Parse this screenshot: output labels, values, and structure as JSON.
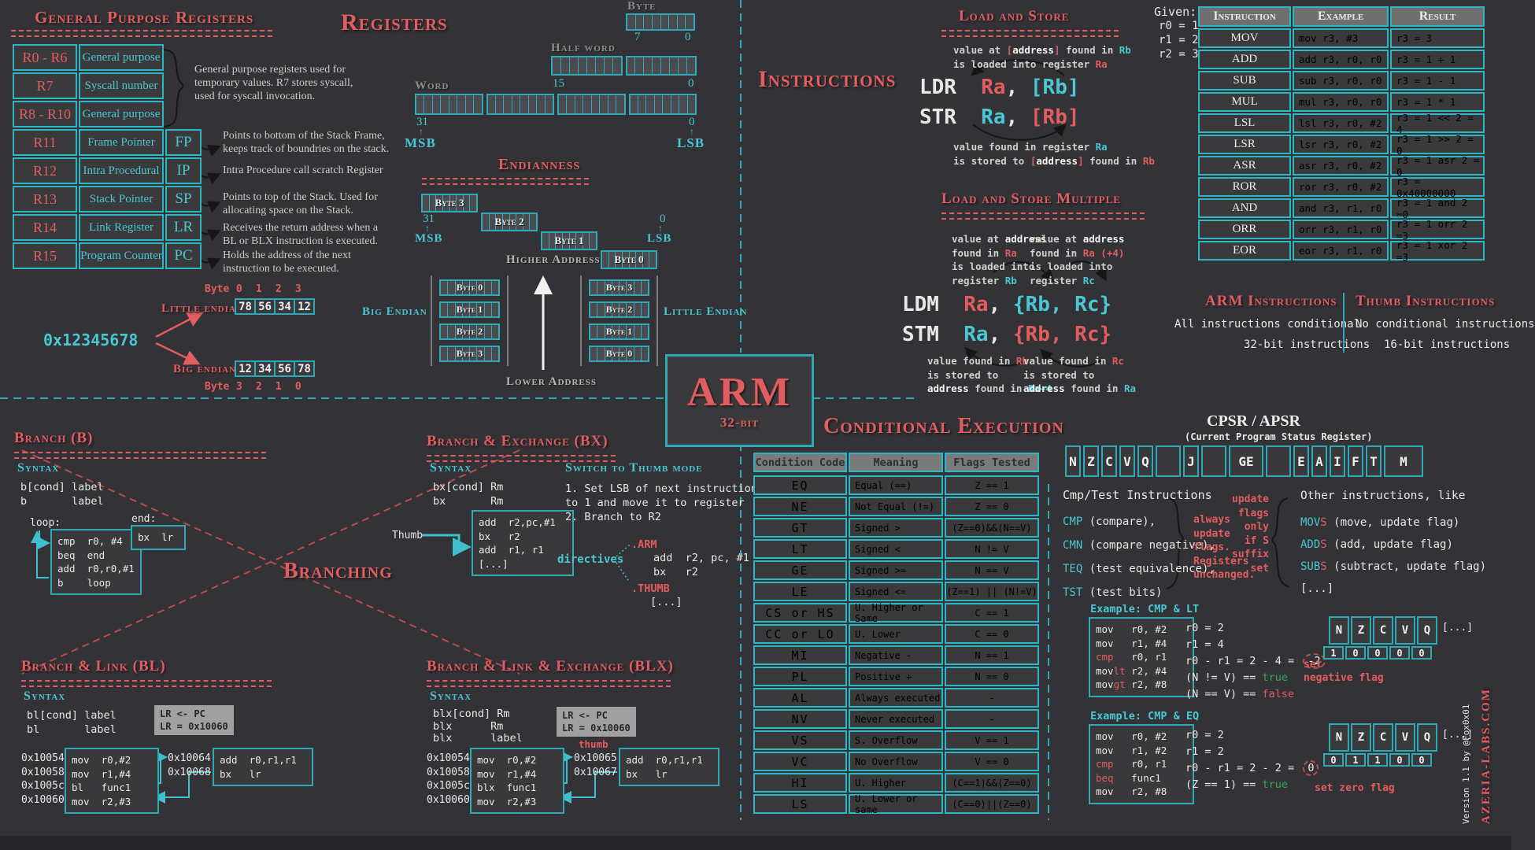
{
  "colors": {
    "bg": "#333236",
    "red": "#e25d5f",
    "cyan": "#49c7d2",
    "teal_border": "#2fa9b6",
    "bright_border": "#2db6c3",
    "white": "#e9e8e6",
    "grey_note": "#cfccc8",
    "green": "#33a852",
    "header_bg": "#6f6f6f",
    "cell_bg": "#3a393c",
    "grey_box": "#a0a0a0"
  },
  "gpr": {
    "title": "General Purpose Registers",
    "rows": [
      [
        "R0 - R6",
        "General purpose",
        ""
      ],
      [
        "R7",
        "Syscall number",
        ""
      ],
      [
        "R8 - R10",
        "General purpose",
        ""
      ],
      [
        "R11",
        "Frame Pointer",
        "FP"
      ],
      [
        "R12",
        "Intra Procedural",
        "IP"
      ],
      [
        "R13",
        "Stack Pointer",
        "SP"
      ],
      [
        "R14",
        "Link Register",
        "LR"
      ],
      [
        "R15",
        "Program Counter",
        "PC"
      ]
    ],
    "note_top": [
      [
        "General purpose registers used for"
      ],
      [
        "temporary values. R7 stores syscall,"
      ],
      [
        "used for syscall invocation."
      ]
    ],
    "note_fp": [
      [
        [
          "Points to bottom of the Stack ",
          "w"
        ],
        [
          "Frame",
          "b"
        ],
        [
          ",",
          "w"
        ]
      ],
      [
        "keeps track of boundries on the stack."
      ]
    ],
    "note_ip": [
      [
        "Intra Procedure call scratch Register"
      ]
    ],
    "note_sp": [
      [
        "Points to top of the Stack. Used for"
      ],
      [
        "allocating space on the Stack."
      ]
    ],
    "note_lr": [
      [
        "Receives the return address when a"
      ],
      [
        "BL or BLX instruction is executed."
      ]
    ],
    "note_pc": [
      [
        "Holds the address of the next"
      ],
      [
        "instruction to be executed."
      ]
    ]
  },
  "registers": {
    "title": "Registers",
    "byte_label": "Byte",
    "byte_hi": "7",
    "byte_lo": "0",
    "half_label": "Half word",
    "half_hi": "15",
    "half_lo": "0",
    "word_label": "Word",
    "word_hi": "31",
    "word_lo": "0",
    "msb": "MSB",
    "lsb": "LSB",
    "up": "↑"
  },
  "endianness": {
    "title": "Endianness",
    "strip": [
      "Byte 3",
      "Byte 2",
      "Byte 1",
      "Byte 0"
    ],
    "hi": "31",
    "lo": "0",
    "msb": "MSB",
    "lsb": "LSB",
    "up": "↑",
    "higher": "Higher Address",
    "lower": "Lower Address",
    "big_label": "Big Endian",
    "little_label": "Little Endian",
    "big_stack": [
      "Byte 0",
      "Byte 1",
      "Byte 2",
      "Byte 3"
    ],
    "little_stack": [
      "Byte 3",
      "Byte 2",
      "Byte 1",
      "Byte 0"
    ]
  },
  "hexex": {
    "hex": "0x12345678",
    "byte_word": "Byte",
    "le_label": "Little endian",
    "be_label": "Big endian",
    "le_idx": [
      "0",
      "1",
      "2",
      "3"
    ],
    "be_idx": [
      "3",
      "2",
      "1",
      "0"
    ],
    "le_vals": [
      "78",
      "56",
      "34",
      "12"
    ],
    "be_vals": [
      "12",
      "34",
      "56",
      "78"
    ]
  },
  "arm_badge": {
    "title": "ARM",
    "subtitle": "32-bit"
  },
  "instructions_heading": "Instructions",
  "ls": {
    "title": "Load and Store",
    "note_top": [
      [
        [
          "value at ",
          "k"
        ],
        [
          "[",
          "r"
        ],
        [
          "address",
          "b"
        ],
        [
          "]",
          "r"
        ],
        [
          " found in ",
          "k"
        ],
        [
          "Rb",
          "c"
        ]
      ],
      [
        [
          "is loaded into register ",
          "k"
        ],
        [
          "Ra",
          "r"
        ]
      ]
    ],
    "code": [
      [
        [
          "LDR",
          "w"
        ],
        [
          "  ",
          "w"
        ],
        [
          "Ra",
          "r"
        ],
        [
          ", ",
          "w"
        ],
        [
          "[Rb]",
          "c"
        ]
      ],
      [
        [
          "STR",
          "w"
        ],
        [
          "  ",
          "w"
        ],
        [
          "Ra",
          "c"
        ],
        [
          ", ",
          "w"
        ],
        [
          "[Rb]",
          "r"
        ]
      ]
    ],
    "note_bottom": [
      [
        [
          "value found in register ",
          "k"
        ],
        [
          "Ra",
          "c"
        ]
      ],
      [
        [
          "is stored to ",
          "k"
        ],
        [
          "[",
          "r"
        ],
        [
          "address",
          "b"
        ],
        [
          "]",
          "r"
        ],
        [
          " found in ",
          "k"
        ],
        [
          "Rb",
          "r"
        ]
      ]
    ]
  },
  "lsm": {
    "title": "Load and Store Multiple",
    "ann_tl": [
      [
        [
          "value at ",
          "k"
        ],
        [
          "address",
          "b"
        ]
      ],
      [
        [
          "found in ",
          "k"
        ],
        [
          "Ra",
          "r"
        ]
      ],
      [
        [
          "is loaded into",
          "k"
        ]
      ],
      [
        [
          "register ",
          "k"
        ],
        [
          "Rb",
          "c"
        ]
      ]
    ],
    "ann_tr": [
      [
        [
          "value at ",
          "k"
        ],
        [
          "address",
          "b"
        ]
      ],
      [
        [
          "found in ",
          "k"
        ],
        [
          "Ra (+4)",
          "r"
        ]
      ],
      [
        [
          "is loaded into",
          "k"
        ]
      ],
      [
        [
          "register ",
          "k"
        ],
        [
          "Rc",
          "c"
        ]
      ]
    ],
    "code": [
      [
        [
          "LDM",
          "w"
        ],
        [
          "  ",
          "w"
        ],
        [
          "Ra",
          "r"
        ],
        [
          ", ",
          "w"
        ],
        [
          "{Rb, Rc}",
          "c"
        ]
      ],
      [
        [
          "STM",
          "w"
        ],
        [
          "  ",
          "w"
        ],
        [
          "Ra",
          "c"
        ],
        [
          ", ",
          "w"
        ],
        [
          "{Rb, Rc}",
          "r"
        ]
      ]
    ],
    "ann_bl": [
      [
        [
          "value found in ",
          "k"
        ],
        [
          "Rb",
          "r"
        ]
      ],
      [
        [
          "is stored to",
          "k"
        ]
      ],
      [
        [
          "address",
          "b"
        ],
        [
          " found in ",
          "k"
        ],
        [
          "Ra+4",
          "c"
        ]
      ]
    ],
    "ann_br": [
      [
        [
          "value found in ",
          "k"
        ],
        [
          "Rc",
          "r"
        ]
      ],
      [
        [
          "is stored to",
          "k"
        ]
      ],
      [
        [
          "address",
          "b"
        ],
        [
          " found in ",
          "k"
        ],
        [
          "Ra",
          "c"
        ]
      ]
    ]
  },
  "given": {
    "label": "Given:",
    "lines": [
      "r0 = 1",
      "r1 = 2",
      "r2 = 3"
    ]
  },
  "itable": {
    "headers": [
      "Instruction",
      "Example",
      "Result"
    ],
    "rows": [
      [
        "MOV",
        "mov r3, #3",
        "r3 = 3"
      ],
      [
        "ADD",
        "add r3, r0, r0",
        "r3 = 1 + 1"
      ],
      [
        "SUB",
        "sub r3, r0, r0",
        "r3 = 1 - 1"
      ],
      [
        "MUL",
        "mul r3, r0, r0",
        "r3 = 1 * 1"
      ],
      [
        "LSL",
        "lsl r3, r0, #2",
        "r3 = 1 << 2 = 4"
      ],
      [
        "LSR",
        "lsr r3, r0, #2",
        "r3 = 1 >> 2 = 0"
      ],
      [
        "ASR",
        "asr r3, r0, #2",
        "r3 = 1 asr 2 = 0"
      ],
      [
        "ROR",
        "ror r3, r0, #2",
        "r3 = 0x40000000"
      ],
      [
        "AND",
        "and r3, r1, r0",
        "r3 = 1 and 2 =0"
      ],
      [
        "ORR",
        "orr r3, r1, r0",
        "r3 = 1 orr 2 =3"
      ],
      [
        "EOR",
        "eor r3, r1, r0",
        "r3 = 1 xor 2 =3"
      ]
    ]
  },
  "arm_thumb": {
    "arm_title": "ARM Instructions",
    "arm_lines": [
      "All instructions conditional",
      "32-bit instructions"
    ],
    "thumb_title": "Thumb Instructions",
    "thumb_lines": [
      "No conditional instructions",
      "16-bit instructions"
    ]
  },
  "branching_heading": "Branching",
  "b": {
    "title": "Branch (B)",
    "syntax_label": "Syntax",
    "syntax": [
      "b[cond] label",
      "b       label"
    ],
    "loop_label": "loop:",
    "loop": [
      "cmp  r0, #4",
      "beq  end",
      "add  r0,r0,#1",
      "b    loop"
    ],
    "end_label": "end:",
    "end": [
      "bx  lr"
    ]
  },
  "bx": {
    "title": "Branch & Exchange (BX)",
    "syntax_label": "Syntax",
    "syntax": [
      "bx[cond] Rm",
      "bx       Rm"
    ],
    "box": [
      "add  r2,pc,#1",
      "bx   r2",
      "add  r1, r1",
      "[...]"
    ],
    "thumb_label": "Thumb",
    "switch_title": "Switch to Thumb mode",
    "steps": [
      "1. Set LSB of next instruction",
      "to 1 and move it to register",
      "2. Branch to R2"
    ],
    "directives_label": "directives",
    "arm_directive": ".ARM",
    "arm_block": [
      "add  r2, pc, #1",
      "bx   r2"
    ],
    "thumb_directive": ".THUMB",
    "thumb_block": [
      "[...]"
    ]
  },
  "bl": {
    "title": "Branch & Link  (BL)",
    "syntax_label": "Syntax",
    "syntax": [
      "bl[cond] label",
      "bl       label"
    ],
    "addresses": [
      "0x10054",
      "0x10058",
      "0x1005c",
      "0x10060"
    ],
    "box": [
      "mov  r0,#2",
      "mov  r1,#4",
      "bl   func1",
      "mov  r2,#3"
    ],
    "lr_note": [
      "LR <- PC",
      "LR = 0x10060"
    ],
    "target_addresses": [
      "0x10064",
      "0x10068"
    ],
    "target_box": [
      "add  r0,r1,r1",
      "bx   lr"
    ]
  },
  "blx": {
    "title": "Branch & Link & Exchange (BLX)",
    "syntax_label": "Syntax",
    "syntax": [
      "blx[cond] Rm",
      "blx      Rm",
      "blx      label"
    ],
    "addresses": [
      "0x10054",
      "0x10058",
      "0x1005c",
      "0x10060"
    ],
    "box": [
      "mov  r0,#2",
      "mov  r1,#4",
      "blx  func1",
      "mov  r2,#3"
    ],
    "lr_note": [
      "LR <- PC",
      "LR = 0x10060"
    ],
    "thumb_label": "thumb",
    "target_addresses": [
      "0x10065",
      "0x10067"
    ],
    "target_box": [
      "add  r0,r1,r1",
      "bx   lr"
    ]
  },
  "cond": {
    "title": "Conditional Execution",
    "headers": [
      "Condition Code",
      "Meaning",
      "Flags Tested"
    ],
    "rows": [
      [
        "EQ",
        "Equal (==)",
        "Z == 1"
      ],
      [
        "NE",
        "Not Equal (!=)",
        "Z == 0"
      ],
      [
        "GT",
        "Signed >",
        "(Z==0)&&(N==V)"
      ],
      [
        "LT",
        "Signed <",
        "N != V"
      ],
      [
        "GE",
        "Signed >=",
        "N == V"
      ],
      [
        "LE",
        "Signed <=",
        "(Z==1) || (N!=V)"
      ],
      [
        "CS or HS",
        "U. Higher or Same",
        "C == 1"
      ],
      [
        "CC or LO",
        "U. Lower",
        "C == 0"
      ],
      [
        "MI",
        "Negative -",
        "N == 1"
      ],
      [
        "PL",
        "Positive +",
        "N == 0"
      ],
      [
        "AL",
        "Always executed",
        "-"
      ],
      [
        "NV",
        "Never executed",
        "-"
      ],
      [
        "VS",
        "S. Overflow",
        "V == 1"
      ],
      [
        "VC",
        "No Overflow",
        "V == 0"
      ],
      [
        "HI",
        "U. Higher",
        "(C==1)&&(Z==0)"
      ],
      [
        "LS",
        "U. Lower or same",
        "(C==0)||(Z==0)"
      ]
    ]
  },
  "cpsr": {
    "title": "CPSR / APSR",
    "subtitle": "(Current Program Status Register)",
    "flags": [
      "N",
      "Z",
      "C",
      "V",
      "Q",
      "",
      "J",
      "",
      "GE",
      "",
      "E",
      "A",
      "I",
      "F",
      "T",
      "M"
    ],
    "cmp_title": "Cmp/Test Instructions",
    "cmp_items": [
      [
        [
          "CMP",
          "c"
        ],
        [
          " (compare),",
          "w"
        ]
      ],
      [
        [
          "CMN",
          "c"
        ],
        [
          " (compare negative),",
          "w"
        ]
      ],
      [
        [
          "TEQ",
          "c"
        ],
        [
          " (test equivalence),",
          "w"
        ]
      ],
      [
        [
          "TST",
          "c"
        ],
        [
          " (test bits)",
          "w"
        ]
      ]
    ],
    "always_note": [
      "always",
      "update",
      "flags.",
      "Registers",
      "unchanged."
    ],
    "s_note": [
      "update",
      "flags",
      "only",
      "if S",
      "suffix",
      "set"
    ],
    "other_title": "Other instructions, like",
    "other_items": [
      [
        [
          "MOV",
          "c"
        ],
        [
          "S",
          "r"
        ],
        [
          " (move, update flag)",
          "w"
        ]
      ],
      [
        [
          "ADD",
          "c"
        ],
        [
          "S",
          "r"
        ],
        [
          " (add, update flag)",
          "w"
        ]
      ],
      [
        [
          "SUB",
          "c"
        ],
        [
          "S",
          "r"
        ],
        [
          " (subtract, update flag)",
          "w"
        ]
      ],
      [
        [
          "[...]",
          "w"
        ]
      ]
    ]
  },
  "ex": [
    {
      "title": "Example: CMP & LT",
      "box": [
        [
          "mov   r0, #2"
        ],
        [
          "mov   r1, #4"
        ],
        [
          [
            "cmp",
            "r"
          ],
          [
            "   r0, r1",
            "w"
          ]
        ],
        [
          [
            "mov",
            "w"
          ],
          [
            "lt",
            "r"
          ],
          [
            " r2, #4",
            "w"
          ]
        ],
        [
          [
            "mov",
            "w"
          ],
          [
            "gt",
            "r"
          ],
          [
            " r2, #8",
            "w"
          ]
        ]
      ],
      "calc": [
        [
          "r0 = 2"
        ],
        [
          "r1 = 4"
        ],
        [
          [
            "r0 - r1 = 2 - 4 = ",
            "w"
          ],
          [
            "-2",
            "circ"
          ]
        ],
        [
          [
            "(N != V) == ",
            "w"
          ],
          [
            "true",
            "g"
          ]
        ],
        [
          [
            "(N == V) == ",
            "w"
          ],
          [
            "false",
            "r"
          ]
        ]
      ],
      "note": [
        "set",
        "negative flag"
      ],
      "flag_headers": [
        "N",
        "Z",
        "C",
        "V",
        "Q"
      ],
      "flag_more": "[...]",
      "flag_values": [
        "1",
        "0",
        "0",
        "0",
        "0"
      ]
    },
    {
      "title": "Example: CMP & EQ",
      "box": [
        [
          "mov   r0, #2"
        ],
        [
          "mov   r1, #2"
        ],
        [
          [
            "cmp",
            "r"
          ],
          [
            "   r0, r1",
            "w"
          ]
        ],
        [
          [
            "beq",
            "r"
          ],
          [
            "   func1",
            "w"
          ]
        ],
        [
          "mov   r2, #8"
        ]
      ],
      "calc": [
        [
          "r0 = 2"
        ],
        [
          "r1 = 2"
        ],
        [
          [
            "r0 - r1 = 2 - 2 = ",
            "w"
          ],
          [
            "0",
            "circ"
          ]
        ],
        [
          [
            "(Z == 1) == ",
            "w"
          ],
          [
            "true",
            "g"
          ]
        ]
      ],
      "note": [
        "set zero flag"
      ],
      "flag_headers": [
        "N",
        "Z",
        "C",
        "V",
        "Q"
      ],
      "flag_more": "[...]",
      "flag_values": [
        "0",
        "1",
        "1",
        "0",
        "0"
      ]
    }
  ],
  "footer": {
    "version": "Version 1.1 by @Fox0x01",
    "site": "AZERIA-LABS.COM"
  }
}
